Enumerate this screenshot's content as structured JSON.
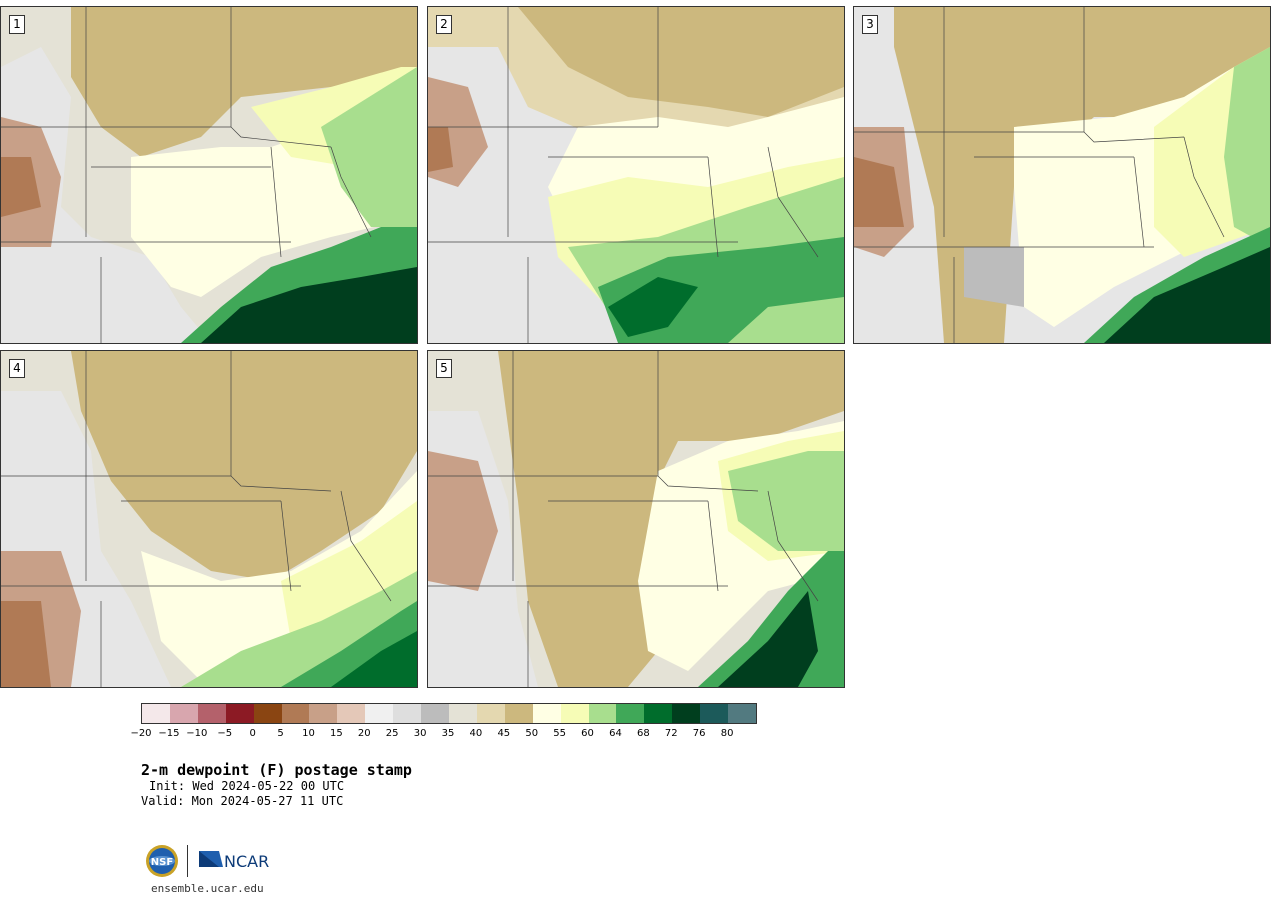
{
  "panels": [
    {
      "label": "1"
    },
    {
      "label": "2"
    },
    {
      "label": "3"
    },
    {
      "label": "4"
    },
    {
      "label": "5"
    }
  ],
  "colorbar": {
    "colors": [
      "#f4e8ea",
      "#d8a6ae",
      "#b4616b",
      "#8c1a24",
      "#8a4512",
      "#b07a55",
      "#c8a088",
      "#e4c8b8",
      "#f0f0f0",
      "#dedede",
      "#bcbcbc",
      "#e4e2d6",
      "#e4d8b0",
      "#ccb87e",
      "#ffffe4",
      "#f6fcb6",
      "#a8de8e",
      "#40a858",
      "#006d2c",
      "#003e1e",
      "#1c5a5a",
      "#527a80"
    ],
    "ticks": [
      "−20",
      "−15",
      "−10",
      "−5",
      "0",
      "5",
      "10",
      "15",
      "20",
      "25",
      "30",
      "35",
      "40",
      "45",
      "50",
      "55",
      "60",
      "64",
      "68",
      "72",
      "76",
      "80"
    ]
  },
  "text": {
    "title": "2-m dewpoint (F) postage stamp",
    "init": "Init: Wed 2024-05-22 00 UTC",
    "valid": "Valid: Mon 2024-05-27 11 UTC",
    "site": "ensemble.ucar.edu",
    "nsf_logo": "NSF",
    "ncar_logo": "NCAR"
  },
  "icons": {
    "nsf": "nsf-logo-icon",
    "ncar": "ncar-logo-icon"
  }
}
